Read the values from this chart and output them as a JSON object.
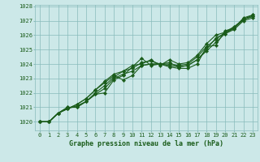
{
  "title": "Graphe pression niveau de la mer (hPa)",
  "background_color": "#cce8e8",
  "grid_color": "#88bbbb",
  "line_color": "#1a5c1a",
  "text_color": "#1a5c1a",
  "xlim": [
    -0.5,
    23.5
  ],
  "ylim": [
    1019.4,
    1028.1
  ],
  "yticks": [
    1020,
    1021,
    1022,
    1023,
    1024,
    1025,
    1026,
    1027,
    1028
  ],
  "xticks": [
    0,
    1,
    2,
    3,
    4,
    5,
    6,
    7,
    8,
    9,
    10,
    11,
    12,
    13,
    14,
    15,
    16,
    17,
    18,
    19,
    20,
    21,
    22,
    23
  ],
  "series": [
    [
      1020.0,
      1020.0,
      1020.6,
      1021.0,
      1021.0,
      1021.4,
      1021.9,
      1022.0,
      1022.9,
      1023.2,
      1023.8,
      1024.4,
      1023.9,
      1024.0,
      1023.8,
      1023.7,
      1023.7,
      1024.0,
      1025.2,
      1025.3,
      1026.3,
      1026.5,
      1027.2,
      1027.4
    ],
    [
      1020.0,
      1020.0,
      1020.6,
      1021.0,
      1021.0,
      1021.4,
      1021.9,
      1022.3,
      1023.0,
      1023.3,
      1023.5,
      1023.9,
      1024.0,
      1024.0,
      1023.9,
      1023.8,
      1023.9,
      1024.3,
      1024.9,
      1025.5,
      1026.1,
      1026.5,
      1027.1,
      1027.3
    ],
    [
      1020.0,
      1020.0,
      1020.6,
      1020.9,
      1021.2,
      1021.6,
      1022.2,
      1022.7,
      1023.2,
      1022.9,
      1023.2,
      1023.9,
      1024.0,
      1024.0,
      1024.1,
      1023.8,
      1023.9,
      1024.3,
      1025.0,
      1025.8,
      1026.1,
      1026.4,
      1027.0,
      1027.2
    ],
    [
      1020.0,
      1020.0,
      1020.6,
      1020.9,
      1021.2,
      1021.6,
      1022.2,
      1022.8,
      1023.3,
      1023.5,
      1023.9,
      1024.0,
      1024.3,
      1023.9,
      1024.3,
      1024.0,
      1024.1,
      1024.6,
      1025.4,
      1026.0,
      1026.2,
      1026.6,
      1027.1,
      1027.4
    ],
    [
      1020.0,
      1020.0,
      1020.6,
      1020.9,
      1021.1,
      1021.4,
      1022.0,
      1022.5,
      1023.1,
      1023.5,
      1023.7,
      1024.1,
      1024.2,
      1024.0,
      1024.0,
      1023.9,
      1024.0,
      1024.5,
      1025.2,
      1025.7,
      1026.2,
      1026.5,
      1027.1,
      1027.3
    ]
  ],
  "markersize": 2.2,
  "linewidth": 0.8,
  "title_fontsize": 6.0,
  "tick_fontsize": 5.0
}
